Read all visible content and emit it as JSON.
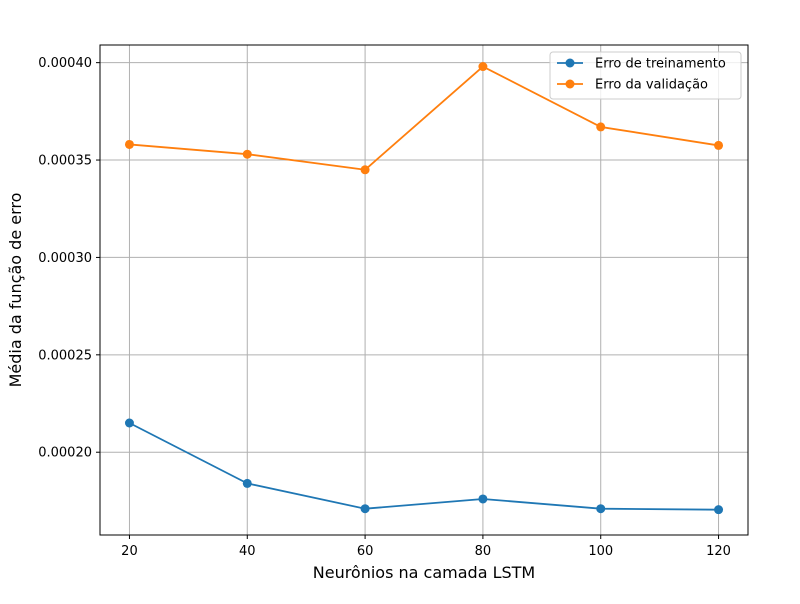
{
  "chart_data": {
    "type": "line",
    "title": "",
    "xlabel": "Neurônios na camada LSTM",
    "ylabel": "Média da função de erro",
    "x": [
      20,
      40,
      60,
      80,
      100,
      120
    ],
    "x_ticks": [
      20,
      40,
      60,
      80,
      100,
      120
    ],
    "x_tick_labels": [
      "20",
      "40",
      "60",
      "80",
      "100",
      "120"
    ],
    "xlim": [
      15.0,
      125.0
    ],
    "y_ticks": [
      0.0002,
      0.00025,
      0.0003,
      0.00035,
      0.0004
    ],
    "y_tick_labels": [
      "0.00020",
      "0.00025",
      "0.00030",
      "0.00035",
      "0.00040"
    ],
    "ylim": [
      0.0001575,
      0.00040906
    ],
    "grid": true,
    "legend_position": "top-right",
    "series": [
      {
        "name": "Erro de treinamento",
        "color": "#1f77b4",
        "values": [
          0.000215,
          0.000184,
          0.000171,
          0.000176,
          0.000171,
          0.0001705
        ]
      },
      {
        "name": "Erro da validação",
        "color": "#ff7f0e",
        "values": [
          0.000358,
          0.000353,
          0.000345,
          0.000398,
          0.000367,
          0.0003575
        ]
      }
    ]
  }
}
